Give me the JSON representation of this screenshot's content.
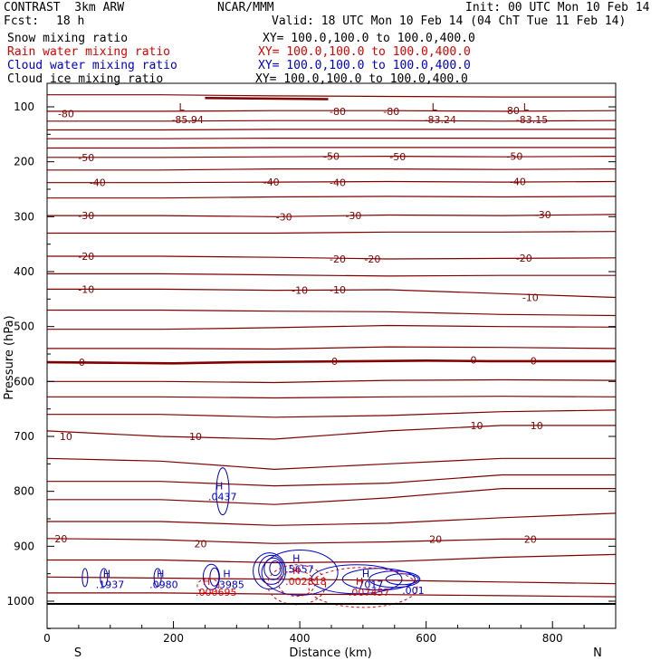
{
  "header": {
    "model": "CONTRAST  3km ARW",
    "center": "NCAR/MMM",
    "init": "Init: 00 UTC Mon 10 Feb 14",
    "fcst_label": "Fcst:",
    "fcst_value": "18 h",
    "valid": "Valid: 18 UTC Mon 10 Feb 14 (04 ChT Tue 11 Feb 14)",
    "fields": [
      {
        "name": "Snow mixing ratio",
        "xy": "XY= 100.0,100.0 to 100.0,400.0",
        "color": "#000000"
      },
      {
        "name": "Rain water mixing ratio",
        "xy": "XY= 100.0,100.0 to 100.0,400.0",
        "color": "#e00000"
      },
      {
        "name": "Cloud water mixing ratio",
        "xy": "XY= 100.0,100.0 to 100.0,400.0",
        "color": "#0000cc"
      },
      {
        "name": "Cloud ice mixing ratio",
        "xy": "XY= 100.0,100.0 to 100.0,400.0",
        "color": "#000000"
      }
    ]
  },
  "chart_data": {
    "type": "contour-cross-section",
    "xlabel": "Distance (km)",
    "ylabel": "Pressure (hPa)",
    "xlim": [
      0,
      900
    ],
    "ylim": [
      1050,
      70
    ],
    "x_ticks": [
      "0",
      "200",
      "400",
      "600",
      "800"
    ],
    "y_ticks": [
      "100",
      "200",
      "300",
      "400",
      "500",
      "600",
      "700",
      "800",
      "900",
      "1000"
    ],
    "left_end_label": "S",
    "right_end_label": "N",
    "colors": {
      "temperature": "#800000",
      "rain": "#e00000",
      "cloud_water": "#0000cc",
      "axes": "#000000"
    },
    "temperature_contour_labels": [
      {
        "text": "-80",
        "x": 30,
        "p": 112
      },
      {
        "text": "-80",
        "x": 460,
        "p": 108
      },
      {
        "text": "-80",
        "x": 545,
        "p": 108
      },
      {
        "text": "-80",
        "x": 735,
        "p": 107
      },
      {
        "text": "-50",
        "x": 62,
        "p": 192
      },
      {
        "text": "-50",
        "x": 450,
        "p": 190
      },
      {
        "text": "-50",
        "x": 555,
        "p": 191
      },
      {
        "text": "-50",
        "x": 740,
        "p": 190
      },
      {
        "text": "-40",
        "x": 80,
        "p": 238
      },
      {
        "text": "-40",
        "x": 355,
        "p": 237
      },
      {
        "text": "-40",
        "x": 460,
        "p": 238
      },
      {
        "text": "-40",
        "x": 745,
        "p": 236
      },
      {
        "text": "-30",
        "x": 62,
        "p": 298
      },
      {
        "text": "-30",
        "x": 375,
        "p": 300
      },
      {
        "text": "-30",
        "x": 485,
        "p": 298
      },
      {
        "text": "-30",
        "x": 785,
        "p": 296
      },
      {
        "text": "-20",
        "x": 62,
        "p": 372
      },
      {
        "text": "-20",
        "x": 460,
        "p": 377
      },
      {
        "text": "-20",
        "x": 515,
        "p": 377
      },
      {
        "text": "-20",
        "x": 755,
        "p": 375
      },
      {
        "text": "-10",
        "x": 62,
        "p": 432
      },
      {
        "text": "-10",
        "x": 400,
        "p": 434
      },
      {
        "text": "-10",
        "x": 460,
        "p": 433
      },
      {
        "text": "-10",
        "x": 765,
        "p": 447
      },
      {
        "text": "0",
        "x": 55,
        "p": 565
      },
      {
        "text": "0",
        "x": 455,
        "p": 563
      },
      {
        "text": "0",
        "x": 675,
        "p": 561
      },
      {
        "text": "0",
        "x": 770,
        "p": 562
      },
      {
        "text": "10",
        "x": 30,
        "p": 700
      },
      {
        "text": "10",
        "x": 235,
        "p": 700
      },
      {
        "text": "10",
        "x": 680,
        "p": 680
      },
      {
        "text": "10",
        "x": 775,
        "p": 680
      },
      {
        "text": "20",
        "x": 22,
        "p": 886
      },
      {
        "text": "20",
        "x": 243,
        "p": 895
      },
      {
        "text": "20",
        "x": 615,
        "p": 887
      },
      {
        "text": "20",
        "x": 765,
        "p": 887
      }
    ],
    "lows": [
      {
        "marker": "L",
        "value": "-85.94",
        "x": 240,
        "p": 80
      },
      {
        "marker": "L",
        "value": "-83.24",
        "x": 640,
        "p": 80
      },
      {
        "marker": "L",
        "value": "-83.15",
        "x": 785,
        "p": 80
      }
    ],
    "highs": [
      {
        "marker": "H",
        "value": ".0437",
        "x": 278,
        "p": 800,
        "color": "#0000cc"
      },
      {
        "marker": "H",
        "value": ".1937",
        "x": 100,
        "p": 960,
        "color": "#0000cc"
      },
      {
        "marker": "H",
        "value": ".0980",
        "x": 185,
        "p": 960,
        "color": "#0000cc"
      },
      {
        "marker": "H",
        "value": ".000695",
        "x": 258,
        "p": 974,
        "color": "#e00000"
      },
      {
        "marker": "H",
        "value": ".3985",
        "x": 290,
        "p": 960,
        "color": "#0000cc"
      },
      {
        "marker": "H",
        "value": ".5657",
        "x": 400,
        "p": 932,
        "color": "#0000cc"
      },
      {
        "marker": "H",
        "value": ".002818",
        "x": 400,
        "p": 954,
        "color": "#e00000"
      },
      {
        "marker": "H",
        "value": ".7017",
        "x": 510,
        "p": 960,
        "color": "#0000cc"
      },
      {
        "marker": "H",
        "value": ".007457",
        "x": 500,
        "p": 974,
        "color": "#e00000"
      },
      {
        "marker": "",
        "value": ".001",
        "x": 585,
        "p": 970,
        "color": "#0000cc"
      }
    ]
  }
}
